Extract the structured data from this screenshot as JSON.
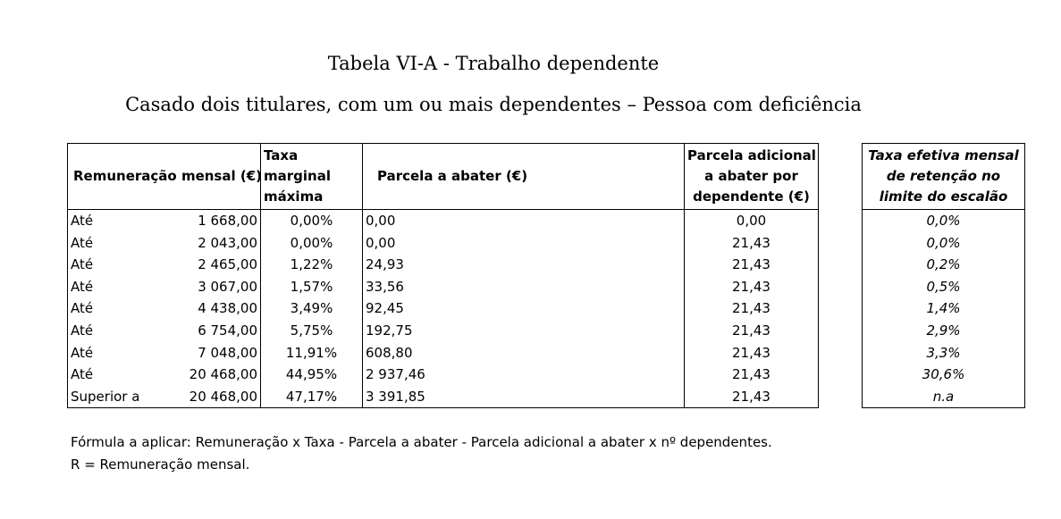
{
  "title": "Tabela VI-A - Trabalho dependente",
  "subtitle": "Casado dois titulares, com um ou mais dependentes – Pessoa com deficiência",
  "table": {
    "headers": {
      "remuneracao": "Remuneração mensal (€)",
      "taxa_line1": "Taxa",
      "taxa_line2": "marginal",
      "taxa_line3": "máxima",
      "parcela": "Parcela a abater (€)",
      "adicional_line1": "Parcela adicional",
      "adicional_line2": "a abater por",
      "adicional_line3": "dependente (€)",
      "efetiva_line1": "Taxa efetiva mensal",
      "efetiva_line2": "de retenção no",
      "efetiva_line3": "limite do escalão"
    },
    "rows": [
      {
        "label": "Até",
        "limite": "1 668,00",
        "taxa": "0,00%",
        "parcela": "0,00",
        "adicional": "0,00",
        "efetiva": "0,0%"
      },
      {
        "label": "Até",
        "limite": "2 043,00",
        "taxa": "0,00%",
        "parcela": "0,00",
        "adicional": "21,43",
        "efetiva": "0,0%"
      },
      {
        "label": "Até",
        "limite": "2 465,00",
        "taxa": "1,22%",
        "parcela": "24,93",
        "adicional": "21,43",
        "efetiva": "0,2%"
      },
      {
        "label": "Até",
        "limite": "3 067,00",
        "taxa": "1,57%",
        "parcela": "33,56",
        "adicional": "21,43",
        "efetiva": "0,5%"
      },
      {
        "label": "Até",
        "limite": "4 438,00",
        "taxa": "3,49%",
        "parcela": "92,45",
        "adicional": "21,43",
        "efetiva": "1,4%"
      },
      {
        "label": "Até",
        "limite": "6 754,00",
        "taxa": "5,75%",
        "parcela": "192,75",
        "adicional": "21,43",
        "efetiva": "2,9%"
      },
      {
        "label": "Até",
        "limite": "7 048,00",
        "taxa": "11,91%",
        "parcela": "608,80",
        "adicional": "21,43",
        "efetiva": "3,3%"
      },
      {
        "label": "Até",
        "limite": "20 468,00",
        "taxa": "44,95%",
        "parcela": "2 937,46",
        "adicional": "21,43",
        "efetiva": "30,6%"
      },
      {
        "label": "Superior a",
        "limite": "20 468,00",
        "taxa": "47,17%",
        "parcela": "3 391,85",
        "adicional": "21,43",
        "efetiva": "n.a"
      }
    ]
  },
  "notes": {
    "formula": "Fórmula a aplicar: Remuneração x Taxa - Parcela a abater - Parcela adicional a abater x nº dependentes.",
    "legend": "R = Remuneração mensal."
  }
}
